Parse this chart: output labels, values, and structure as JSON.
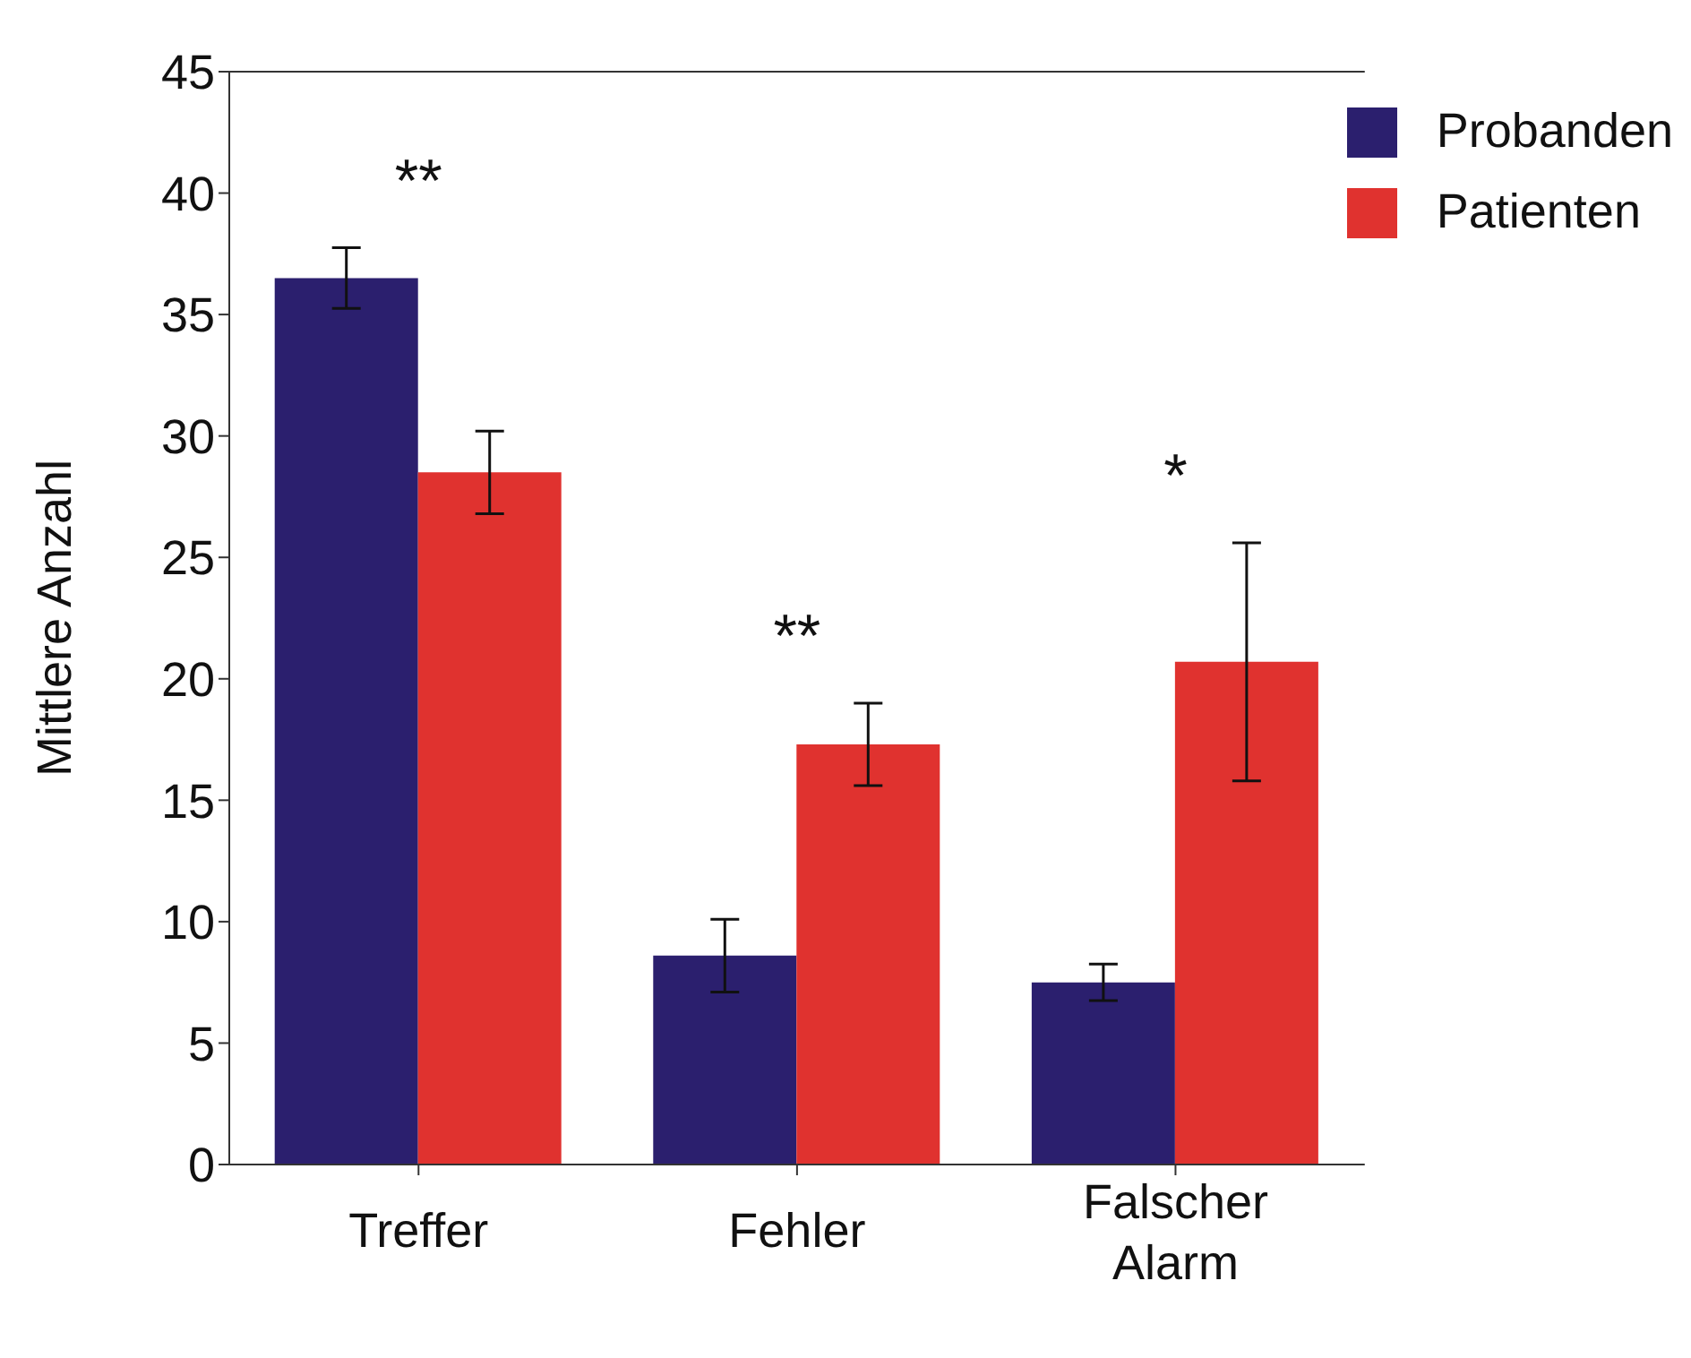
{
  "chart_data": {
    "type": "bar",
    "ylabel": "Mittlere Anzahl",
    "categories": [
      "Treffer",
      "Fehler",
      "Falscher Alarm"
    ],
    "series": [
      {
        "name": "Probanden",
        "color": "#2b1f6e",
        "values": [
          36.5,
          8.6,
          7.5
        ],
        "errors": [
          1.25,
          1.5,
          0.75
        ]
      },
      {
        "name": "Patienten",
        "color": "#e0322f",
        "values": [
          28.5,
          17.3,
          20.7
        ],
        "errors": [
          1.7,
          1.7,
          4.9
        ]
      }
    ],
    "ylim": [
      0,
      45
    ],
    "yticks": [
      0,
      5,
      10,
      15,
      20,
      25,
      30,
      35,
      40,
      45
    ],
    "grid": false,
    "legend": "top right",
    "annotations": [
      "**",
      "**",
      "*"
    ]
  }
}
